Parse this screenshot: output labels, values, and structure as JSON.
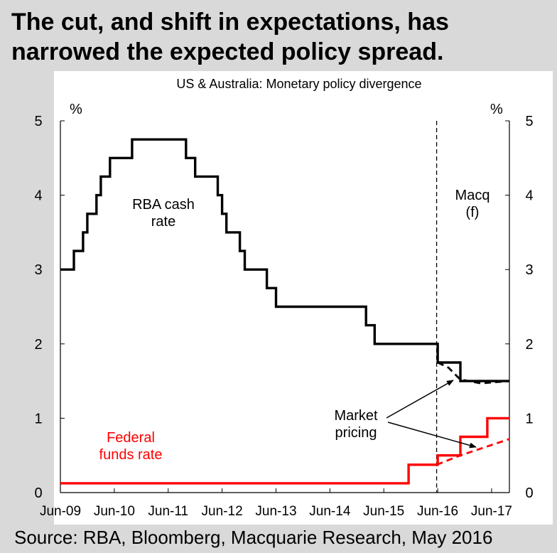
{
  "headline": {
    "line1": "The cut, and shift in expectations, has",
    "line2": "narrowed the expected policy spread."
  },
  "source": "Source: RBA, Bloomberg, Macquarie Research, May 2016",
  "colors": {
    "background": "#d9d9d9",
    "panel": "#ffffff",
    "rba": "#000000",
    "fed": "#ff0000"
  },
  "chart_data": {
    "type": "line",
    "title": "US & Australia: Monetary policy divergence",
    "left_axis_unit": "%",
    "right_axis_unit": "%",
    "ylim": [
      0,
      5
    ],
    "y_ticks": [
      "0",
      "1",
      "2",
      "3",
      "4",
      "5"
    ],
    "x_ticks": [
      "Jun-09",
      "Jun-10",
      "Jun-11",
      "Jun-12",
      "Jun-13",
      "Jun-14",
      "Jun-15",
      "Jun-16",
      "Jun-17"
    ],
    "xlim": [
      2009.0,
      2017.33
    ],
    "forecast_start": 2015.98,
    "series": [
      {
        "name": "RBA cash rate",
        "color": "#000000",
        "style": "solid",
        "label_lines": [
          "RBA cash",
          "rate"
        ],
        "points": [
          [
            2009.0,
            3.0
          ],
          [
            2009.25,
            3.0
          ],
          [
            2009.25,
            3.25
          ],
          [
            2009.42,
            3.25
          ],
          [
            2009.42,
            3.5
          ],
          [
            2009.5,
            3.5
          ],
          [
            2009.5,
            3.75
          ],
          [
            2009.67,
            3.75
          ],
          [
            2009.67,
            4.0
          ],
          [
            2009.75,
            4.0
          ],
          [
            2009.75,
            4.25
          ],
          [
            2009.92,
            4.25
          ],
          [
            2009.92,
            4.5
          ],
          [
            2010.33,
            4.5
          ],
          [
            2010.33,
            4.75
          ],
          [
            2011.33,
            4.75
          ],
          [
            2011.33,
            4.5
          ],
          [
            2011.5,
            4.5
          ],
          [
            2011.5,
            4.25
          ],
          [
            2011.92,
            4.25
          ],
          [
            2011.92,
            4.0
          ],
          [
            2012.0,
            4.0
          ],
          [
            2012.0,
            3.75
          ],
          [
            2012.08,
            3.75
          ],
          [
            2012.08,
            3.5
          ],
          [
            2012.33,
            3.5
          ],
          [
            2012.33,
            3.25
          ],
          [
            2012.42,
            3.25
          ],
          [
            2012.42,
            3.0
          ],
          [
            2012.83,
            3.0
          ],
          [
            2012.83,
            2.75
          ],
          [
            2013.0,
            2.75
          ],
          [
            2013.0,
            2.5
          ],
          [
            2014.67,
            2.5
          ],
          [
            2014.67,
            2.25
          ],
          [
            2014.83,
            2.25
          ],
          [
            2014.83,
            2.0
          ],
          [
            2015.98,
            2.0
          ],
          [
            2016.0,
            2.0
          ],
          [
            2016.0,
            1.75
          ],
          [
            2016.42,
            1.75
          ],
          [
            2016.42,
            1.5
          ],
          [
            2017.33,
            1.5
          ]
        ]
      },
      {
        "name": "RBA market pricing",
        "color": "#000000",
        "style": "dashed",
        "points": [
          [
            2016.0,
            1.75
          ],
          [
            2016.2,
            1.68
          ],
          [
            2016.42,
            1.52
          ],
          [
            2016.8,
            1.47
          ],
          [
            2017.33,
            1.5
          ]
        ]
      },
      {
        "name": "Federal funds rate",
        "color": "#ff0000",
        "style": "solid",
        "label_lines": [
          "Federal",
          "funds rate"
        ],
        "points": [
          [
            2009.0,
            0.125
          ],
          [
            2015.46,
            0.125
          ],
          [
            2015.46,
            0.375
          ],
          [
            2016.0,
            0.375
          ],
          [
            2016.0,
            0.5
          ],
          [
            2016.42,
            0.5
          ],
          [
            2016.42,
            0.75
          ],
          [
            2016.92,
            0.75
          ],
          [
            2016.92,
            1.0
          ],
          [
            2017.33,
            1.0
          ]
        ]
      },
      {
        "name": "Fed market pricing",
        "color": "#ff0000",
        "style": "dashed",
        "points": [
          [
            2015.98,
            0.375
          ],
          [
            2016.42,
            0.5
          ],
          [
            2017.33,
            0.72
          ]
        ]
      }
    ],
    "annotations": [
      {
        "name": "macq-forecast",
        "lines": [
          "Macq",
          "(f)"
        ]
      },
      {
        "name": "market-pricing",
        "lines": [
          "Market",
          "pricing"
        ]
      }
    ]
  }
}
